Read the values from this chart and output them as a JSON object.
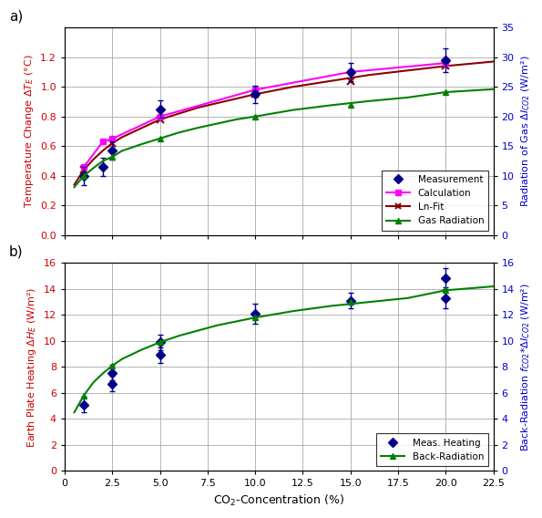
{
  "panel_a": {
    "label": "a)",
    "meas_x": [
      1.0,
      2.0,
      2.5,
      5.0,
      10.0,
      15.0,
      20.0
    ],
    "meas_y": [
      0.4,
      0.46,
      0.57,
      0.85,
      0.95,
      1.1,
      1.18
    ],
    "meas_yerr": [
      0.06,
      0.06,
      0.06,
      0.06,
      0.06,
      0.06,
      0.08
    ],
    "calc_x": [
      1.0,
      2.0,
      2.5,
      5.0,
      10.0,
      15.0,
      20.0
    ],
    "calc_y": [
      0.46,
      0.63,
      0.65,
      0.8,
      0.98,
      1.1,
      1.16
    ],
    "lnfit_x": [
      0.5,
      1.0,
      1.5,
      2.0,
      2.5,
      3.0,
      4.0,
      5.0,
      6.0,
      7.0,
      8.0,
      9.0,
      10.0,
      12.0,
      14.0,
      16.0,
      18.0,
      20.0,
      22.5
    ],
    "lnfit_y": [
      0.34,
      0.44,
      0.51,
      0.57,
      0.62,
      0.66,
      0.72,
      0.78,
      0.82,
      0.86,
      0.89,
      0.92,
      0.95,
      1.0,
      1.04,
      1.08,
      1.11,
      1.14,
      1.17
    ],
    "lnfit_pts_x": [
      1.0,
      2.5,
      5.0,
      10.0,
      15.0,
      20.0
    ],
    "lnfit_pts_y": [
      0.44,
      0.62,
      0.78,
      0.95,
      1.04,
      1.14
    ],
    "gasrad_x": [
      0.5,
      1.0,
      1.5,
      2.0,
      2.5,
      3.0,
      4.0,
      5.0,
      6.0,
      7.0,
      8.0,
      9.0,
      10.0,
      12.0,
      14.0,
      16.0,
      18.0,
      20.0,
      22.5
    ],
    "gasrad_y": [
      8.1,
      10.0,
      11.3,
      12.5,
      13.2,
      14.2,
      15.3,
      16.3,
      17.3,
      18.1,
      18.8,
      19.5,
      20.0,
      21.1,
      21.9,
      22.6,
      23.2,
      24.1,
      24.6
    ],
    "gasrad_pts_x": [
      1.0,
      2.5,
      5.0,
      10.0,
      15.0,
      20.0
    ],
    "gasrad_pts_y": [
      10.0,
      13.2,
      16.3,
      20.0,
      21.9,
      24.1
    ],
    "ylim_left": [
      0.0,
      1.4
    ],
    "ylim_right": [
      0,
      35
    ],
    "yticks_left": [
      0.0,
      0.2,
      0.4,
      0.6,
      0.8,
      1.0,
      1.2
    ],
    "yticks_right": [
      0,
      5,
      10,
      15,
      20,
      25,
      30,
      35
    ],
    "ylabel_left": "Temperature Change Δ$T_E$ (°C)",
    "ylabel_right": "Radiation of Gas Δ$I_{CO2}$ (W/m²)",
    "left_label_color": "#cc0000",
    "right_label_color": "#0000cc",
    "meas_color": "#00008B",
    "calc_color": "#FF00FF",
    "lnfit_color": "#8B0000",
    "gasrad_color": "#008000"
  },
  "panel_b": {
    "label": "b)",
    "meas_x": [
      1.0,
      2.5,
      2.5,
      5.0,
      5.0,
      10.0,
      15.0,
      20.0,
      20.0
    ],
    "meas_y": [
      5.1,
      7.55,
      6.7,
      9.9,
      8.9,
      12.1,
      13.1,
      13.3,
      14.8
    ],
    "meas_yerr": [
      0.6,
      0.6,
      0.6,
      0.6,
      0.6,
      0.8,
      0.6,
      0.8,
      0.8
    ],
    "backrad_x": [
      0.5,
      1.0,
      1.5,
      2.0,
      2.5,
      3.0,
      4.0,
      5.0,
      6.0,
      7.0,
      8.0,
      9.0,
      10.0,
      12.0,
      14.0,
      16.0,
      18.0,
      19.0,
      20.0,
      22.5
    ],
    "backrad_y": [
      4.5,
      5.8,
      6.8,
      7.5,
      8.1,
      8.6,
      9.3,
      9.9,
      10.4,
      10.8,
      11.2,
      11.5,
      11.8,
      12.3,
      12.7,
      13.0,
      13.3,
      13.6,
      13.9,
      14.2
    ],
    "backrad_pts_x": [
      1.0,
      2.5,
      5.0,
      10.0,
      15.0,
      20.0
    ],
    "backrad_pts_y": [
      5.8,
      8.1,
      9.9,
      11.8,
      13.0,
      13.9
    ],
    "ylim_left": [
      0,
      16
    ],
    "ylim_right": [
      0,
      16
    ],
    "yticks_left": [
      0,
      2,
      4,
      6,
      8,
      10,
      12,
      14,
      16
    ],
    "yticks_right": [
      0,
      2,
      4,
      6,
      8,
      10,
      12,
      14,
      16
    ],
    "ylabel_left": "Earth Plate Heating Δ$H_E$ (W/m²)",
    "ylabel_right": "Back-Radiation $f_{CO2}$*Δ$I_{CO2}$ (W/m²)",
    "xlabel": "CO$_2$-Concentration (%)",
    "left_label_color": "#cc0000",
    "right_label_color": "#0000cc",
    "meas_color": "#00008B",
    "backrad_color": "#008000"
  },
  "xlim": [
    0.0,
    22.5
  ],
  "xticks": [
    0.0,
    2.5,
    5.0,
    7.5,
    10.0,
    12.5,
    15.0,
    17.5,
    20.0,
    22.5
  ],
  "xticklabels": [
    "0",
    "2.5",
    "5.0",
    "7.5",
    "10.0",
    "12.5",
    "15.0",
    "17.5",
    "20.0",
    "22.5"
  ],
  "grid_color": "#aaaaaa",
  "background_color": "#ffffff"
}
